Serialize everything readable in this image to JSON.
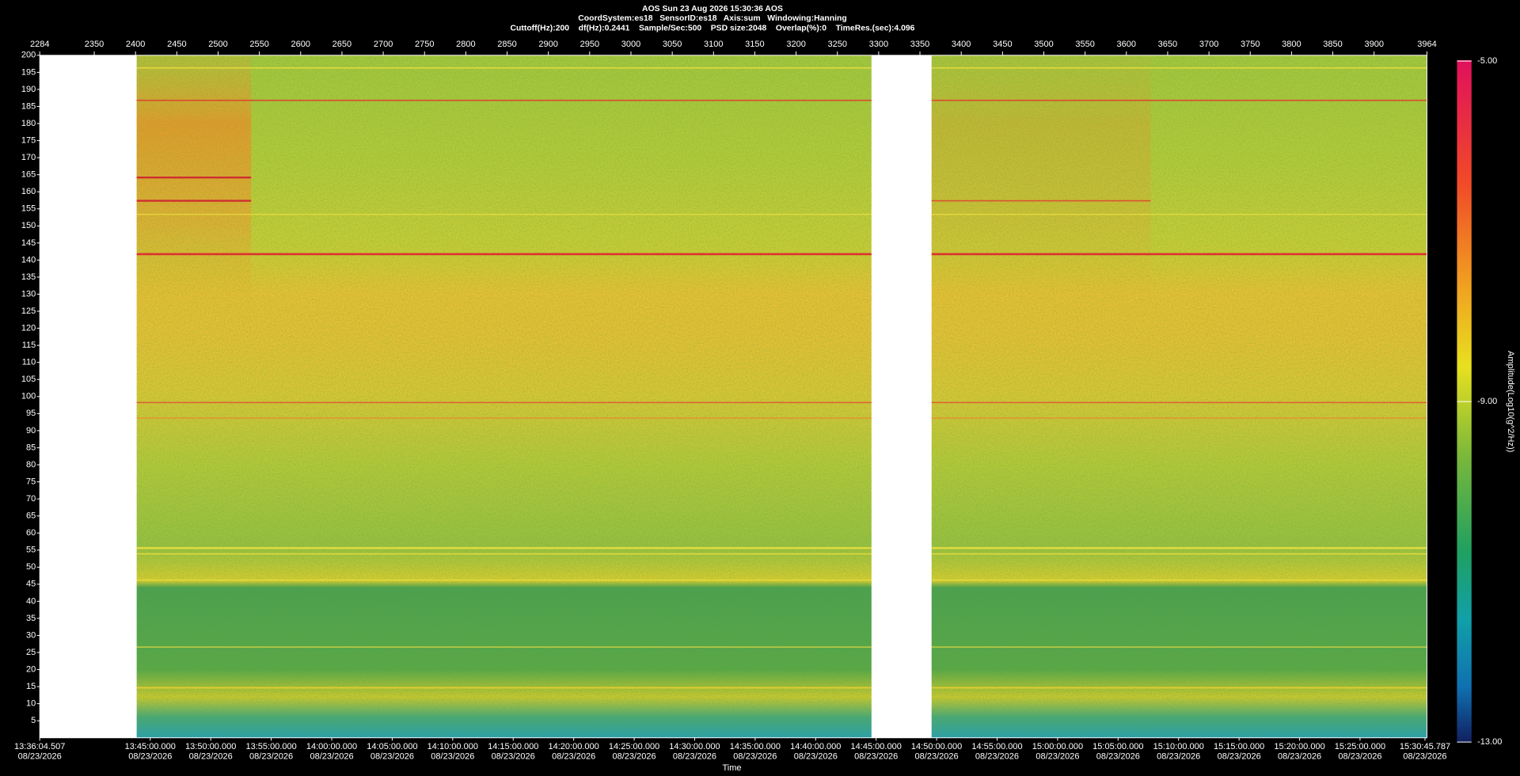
{
  "chart_data": {
    "type": "spectrogram",
    "title": "AOS  Sun 23 Aug 2026 15:30:36  AOS",
    "subtitle": "CoordSystem:es18   SensorID:es18   Axis:sum   Windowing:Hanning",
    "info": "Cuttoff(Hz):200    df(Hz):0.2441    Sample/Sec:500    PSD size:2048    Overlap(%):0    TimeRes.(sec):4.096",
    "x_label": "Time",
    "xlim": [
      2284,
      3964
    ],
    "xticks": [
      2284,
      2350,
      2400,
      2450,
      2500,
      2550,
      2600,
      2650,
      2700,
      2750,
      2800,
      2850,
      2900,
      2950,
      3000,
      3050,
      3100,
      3150,
      3200,
      3250,
      3300,
      3350,
      3400,
      3450,
      3500,
      3550,
      3600,
      3650,
      3700,
      3750,
      3800,
      3850,
      3900,
      3964
    ],
    "ylim": [
      0,
      200
    ],
    "yticks": [
      5,
      10,
      15,
      20,
      25,
      30,
      35,
      40,
      45,
      50,
      55,
      60,
      65,
      70,
      75,
      80,
      85,
      90,
      95,
      100,
      105,
      110,
      115,
      120,
      125,
      130,
      135,
      140,
      145,
      150,
      155,
      160,
      165,
      170,
      175,
      180,
      185,
      190,
      195,
      200
    ],
    "time_labels": [
      "13:36:04.507",
      "13:45:00.000",
      "13:50:00.000",
      "13:55:00.000",
      "14:00:00.000",
      "14:05:00.000",
      "14:10:00.000",
      "14:15:00.000",
      "14:20:00.000",
      "14:25:00.000",
      "14:30:00.000",
      "14:35:00.000",
      "14:40:00.000",
      "14:45:00.000",
      "14:50:00.000",
      "14:55:00.000",
      "15:00:00.000",
      "15:05:00.000",
      "15:10:00.000",
      "15:15:00.000",
      "15:20:00.000",
      "15:25:00.000",
      "15:30:45.787"
    ],
    "time_dates": [
      "08/23/2026",
      "08/23/2026",
      "08/23/2026",
      "08/23/2026",
      "08/23/2026",
      "08/23/2026",
      "08/23/2026",
      "08/23/2026",
      "08/23/2026",
      "08/23/2026",
      "08/23/2026",
      "08/23/2026",
      "08/23/2026",
      "08/23/2026",
      "08/23/2026",
      "08/23/2026",
      "08/23/2026",
      "08/23/2026",
      "08/23/2026",
      "08/23/2026",
      "08/23/2026",
      "08/23/2026",
      "08/23/2026"
    ],
    "colorbar": {
      "label": "Amplitude(Log10(g^2/Hz))",
      "lim": [
        -13,
        -5
      ],
      "ticks": [
        {
          "value": -5,
          "label": "-5.00"
        },
        {
          "value": -9,
          "label": "-9.00"
        },
        {
          "value": -13,
          "label": "-13.00"
        }
      ]
    }
  }
}
